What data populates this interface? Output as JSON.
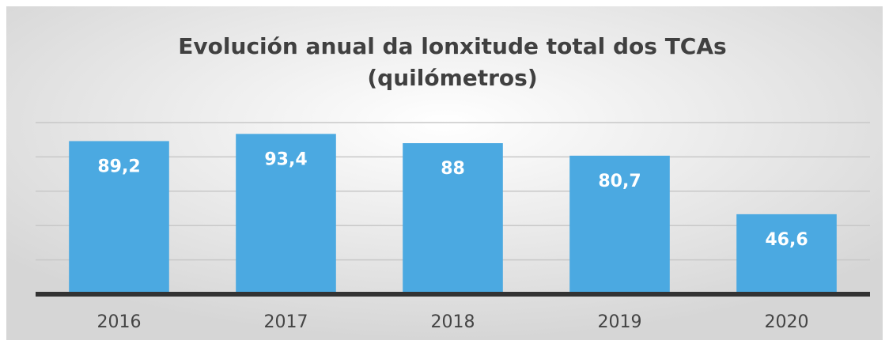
{
  "chart_data": {
    "type": "bar",
    "title": "Evolución anual da lonxitude total dos TCAs",
    "subtitle": "(quilómetros)",
    "categories": [
      "2016",
      "2017",
      "2018",
      "2019",
      "2020"
    ],
    "values": [
      89.2,
      93.4,
      88,
      80.7,
      46.6
    ],
    "value_labels": [
      "89,2",
      "93,4",
      "88",
      "80,7",
      "46,6"
    ],
    "color": "#4ba9e1",
    "ylim": [
      0,
      100
    ],
    "yticks": [
      0,
      20,
      40,
      60,
      80,
      100
    ],
    "grid": true
  }
}
